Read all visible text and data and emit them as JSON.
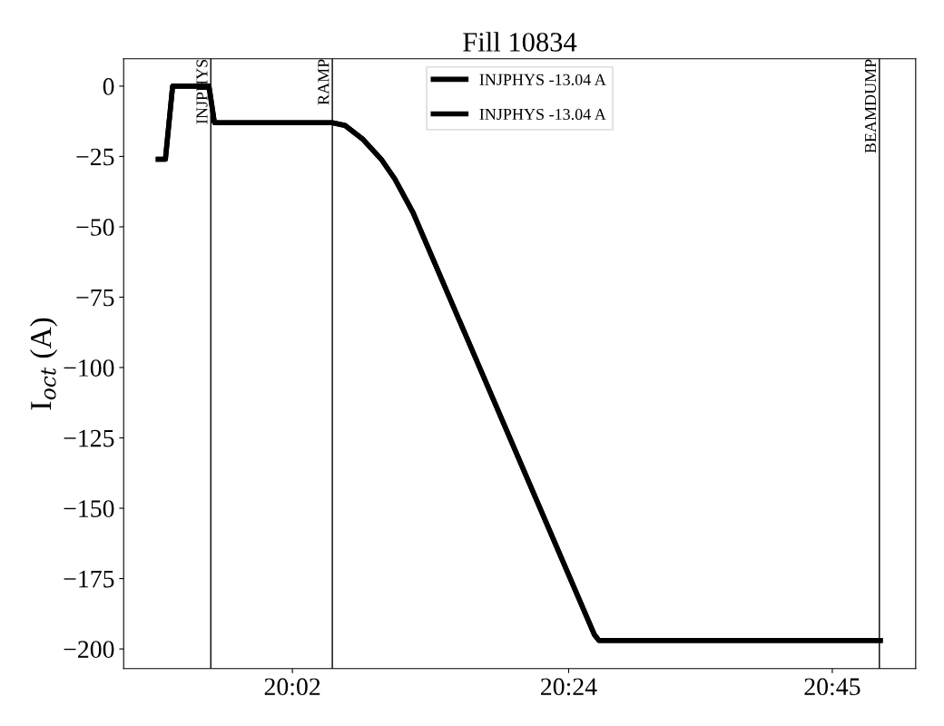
{
  "chart_data": {
    "type": "line",
    "title": "Fill 10834",
    "ylabel": "I$_{oct}$ (A)",
    "x": [
      19.8552,
      19.8647,
      19.8743,
      19.9225,
      19.9298,
      20.0863,
      20.1032,
      20.1273,
      20.1513,
      20.1693,
      20.1935,
      20.4343,
      20.4403,
      20.8137
    ],
    "series": [
      {
        "name": "INJPHYS -13.04 A",
        "color": "#000000",
        "values": [
          -26,
          -26,
          0,
          0,
          -13,
          -13,
          -14,
          -19,
          -26,
          -33,
          -45,
          -195,
          -197,
          -197
        ]
      },
      {
        "name": "INJPHYS -13.04 A",
        "color": "#000000",
        "values": [
          -26,
          -26,
          0,
          0,
          -13,
          -13,
          -14,
          -19,
          -26,
          -33,
          -45,
          -195,
          -197,
          -197
        ]
      }
    ],
    "xlim": [
      19.8093,
      20.8607
    ],
    "xticks": [
      {
        "value": 20.0333,
        "label": "20:02"
      },
      {
        "value": 20.4,
        "label": "20:24"
      },
      {
        "value": 20.75,
        "label": "20:45"
      }
    ],
    "ylim": [
      -207,
      9.7
    ],
    "yticks": [
      0,
      -25,
      -50,
      -75,
      -100,
      -125,
      -150,
      -175,
      -200
    ],
    "ref_lines": [
      {
        "axis": "x",
        "value": 19.925,
        "label": "INJPHYS",
        "color": "#000000"
      },
      {
        "axis": "x",
        "value": 20.0863,
        "label": "RAMP",
        "color": "#000000"
      },
      {
        "axis": "x",
        "value": 20.8125,
        "label": "BEAMDUMP",
        "color": "#000000"
      }
    ],
    "legend": "top",
    "grid": false,
    "marker": "none",
    "line_style": "solid"
  }
}
